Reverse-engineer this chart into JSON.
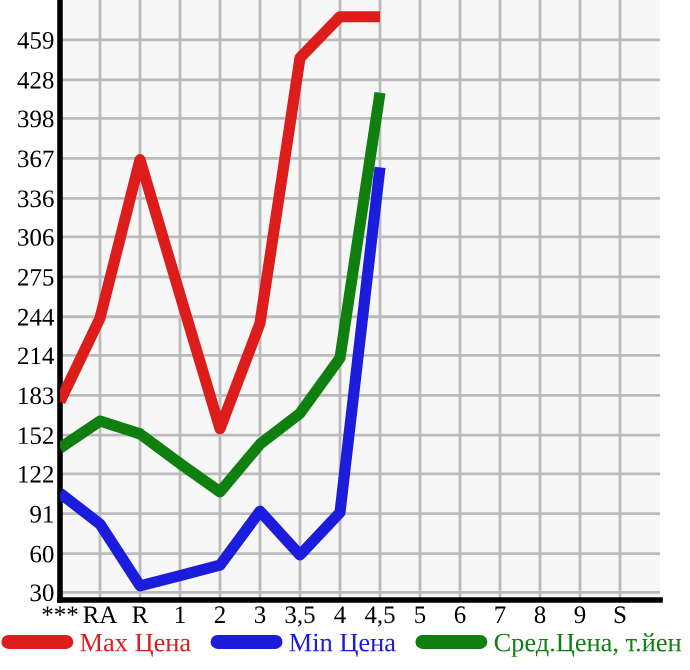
{
  "chart_data": {
    "type": "line",
    "categories": [
      "***",
      "RA",
      "R",
      "1",
      "2",
      "3",
      "3,5",
      "4",
      "4,5",
      "5",
      "6",
      "7",
      "8",
      "9",
      "S"
    ],
    "series": [
      {
        "name": "Max Цена",
        "color": "#dd1c1c",
        "values": [
          178,
          243,
          366,
          261,
          157,
          239,
          445,
          477,
          477,
          null,
          null,
          null,
          null,
          null,
          null
        ]
      },
      {
        "name": "Min Цена",
        "color": "#1c1cdd",
        "values": [
          107,
          83,
          35,
          43,
          51,
          93,
          59,
          92,
          360,
          null,
          null,
          null,
          null,
          null,
          null
        ]
      },
      {
        "name": "Сред.Цена, т.йен",
        "color": "#0f7f0f",
        "values": [
          142,
          163,
          153,
          130,
          108,
          145,
          169,
          212,
          418,
          null,
          null,
          null,
          null,
          null,
          null
        ]
      }
    ],
    "ylim": [
      24,
      490
    ],
    "yticks": [
      30,
      60,
      91,
      122,
      152,
      183,
      214,
      244,
      275,
      306,
      336,
      367,
      398,
      428,
      459
    ],
    "grid": true,
    "legend": "bottom",
    "marker": "none",
    "line_style": "solid"
  }
}
